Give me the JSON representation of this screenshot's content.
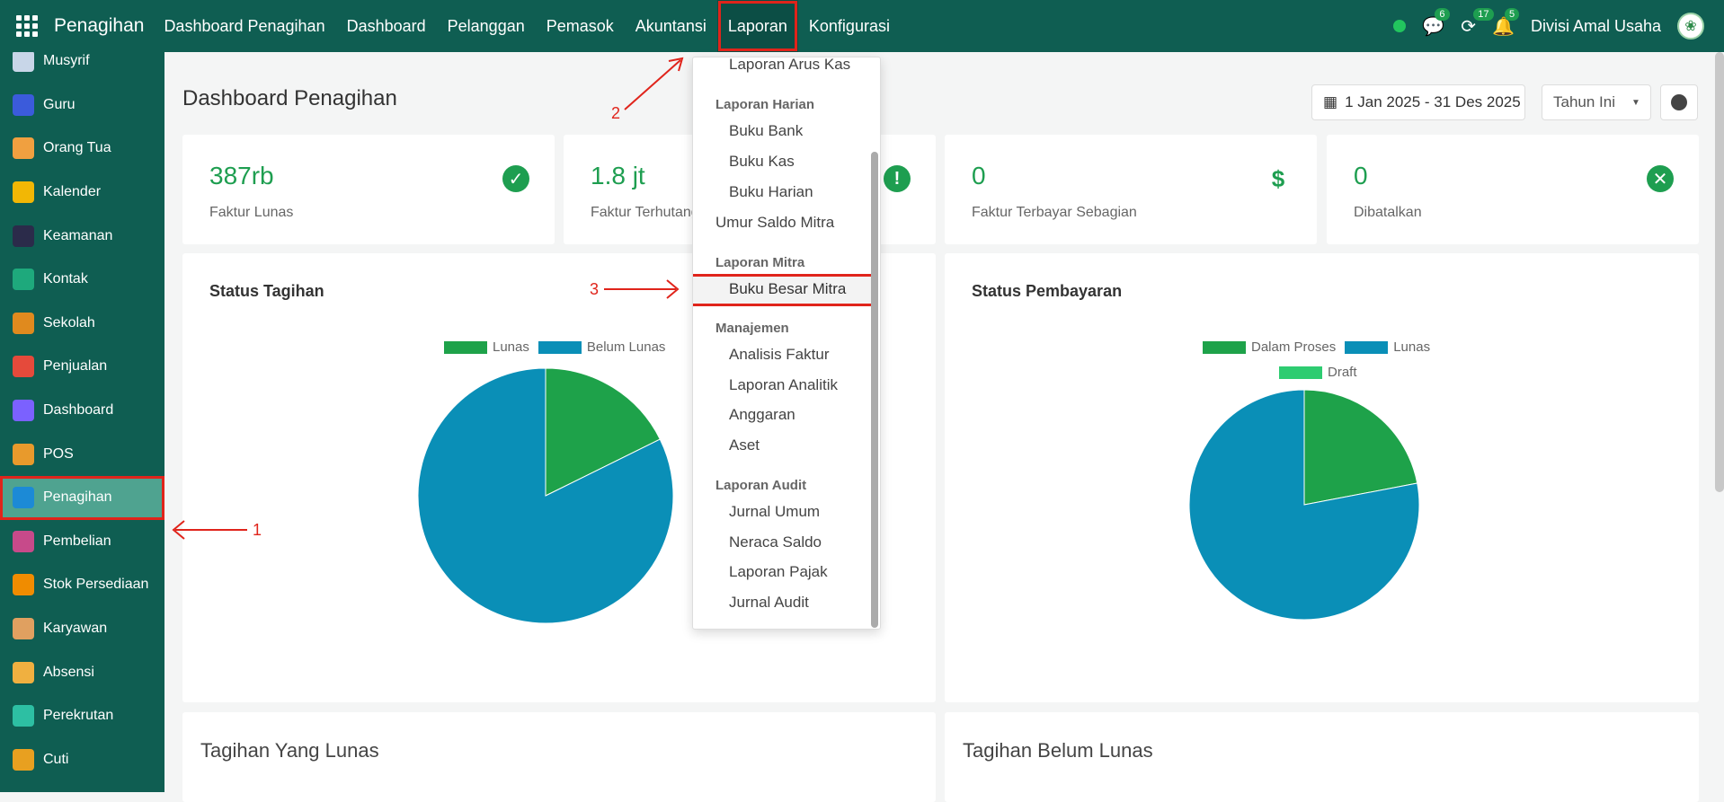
{
  "topbar": {
    "brand": "Penagihan",
    "menu": [
      "Dashboard Penagihan",
      "Dashboard",
      "Pelanggan",
      "Pemasok",
      "Akuntansi",
      "Laporan",
      "Konfigurasi"
    ],
    "badges": {
      "chat": "6",
      "activity": "17",
      "notif": "5"
    },
    "company": "Divisi Amal Usaha"
  },
  "sidebar": {
    "items": [
      {
        "label": "Musyrif",
        "icon": "person-icon",
        "color": "#c8d6e8"
      },
      {
        "label": "Guru",
        "icon": "teacher-icon",
        "color": "#3b5bdb"
      },
      {
        "label": "Orang Tua",
        "icon": "family-icon",
        "color": "#f0a040"
      },
      {
        "label": "Kalender",
        "icon": "calendar-icon",
        "color": "#f2b705"
      },
      {
        "label": "Keamanan",
        "icon": "guard-icon",
        "color": "#2b2b4a"
      },
      {
        "label": "Kontak",
        "icon": "contact-icon",
        "color": "#1ea97c"
      },
      {
        "label": "Sekolah",
        "icon": "school-icon",
        "color": "#e08a1e"
      },
      {
        "label": "Penjualan",
        "icon": "chart-icon",
        "color": "#e54a3b"
      },
      {
        "label": "Dashboard",
        "icon": "dashboard-icon",
        "color": "#7b61ff"
      },
      {
        "label": "POS",
        "icon": "shop-icon",
        "color": "#e89a2c"
      },
      {
        "label": "Penagihan",
        "icon": "invoice-icon",
        "color": "#1c8ad6"
      },
      {
        "label": "Pembelian",
        "icon": "card-icon",
        "color": "#c74a8a"
      },
      {
        "label": "Stok Persediaan",
        "icon": "box-icon",
        "color": "#f08c00"
      },
      {
        "label": "Karyawan",
        "icon": "people-icon",
        "color": "#e0a060"
      },
      {
        "label": "Absensi",
        "icon": "attendance-icon",
        "color": "#f0b040"
      },
      {
        "label": "Perekrutan",
        "icon": "search-icon",
        "color": "#2dbfa3"
      },
      {
        "label": "Cuti",
        "icon": "leave-icon",
        "color": "#e8a020"
      }
    ]
  },
  "page": {
    "title": "Dashboard Penagihan",
    "date_range": "1 Jan 2025 - 31 Des 2025",
    "period": "Tahun Ini"
  },
  "kpis": [
    {
      "value": "387rb",
      "label": "Faktur Lunas"
    },
    {
      "value": "1.8 jt",
      "label": "Faktur Terhutang"
    },
    {
      "value": "0",
      "label": "Faktur Terbayar Sebagian"
    },
    {
      "value": "0",
      "label": "Dibatalkan"
    }
  ],
  "cards": {
    "status_tagihan": "Status Tagihan",
    "status_pembayaran": "Status Pembayaran",
    "paid": "Tagihan Yang Lunas",
    "unpaid": "Tagihan Belum Lunas"
  },
  "dropdown": {
    "top_item": "Laporan Arus Kas",
    "h1": "Laporan Harian",
    "g1": [
      "Buku Bank",
      "Buku Kas",
      "Buku Harian"
    ],
    "root1": "Umur Saldo Mitra",
    "h2": "Laporan Mitra",
    "g2": [
      "Buku Besar Mitra"
    ],
    "h3": "Manajemen",
    "g3": [
      "Analisis Faktur",
      "Laporan Analitik",
      "Anggaran",
      "Aset"
    ],
    "h4": "Laporan Audit",
    "g4": [
      "Jurnal Umum",
      "Neraca Saldo",
      "Laporan Pajak",
      "Jurnal Audit"
    ]
  },
  "annotations": {
    "a1": "1",
    "a2": "2",
    "a3": "3"
  },
  "chart_data": [
    {
      "type": "pie",
      "title": "Status Tagihan",
      "labels": [
        "Lunas",
        "Belum Lunas"
      ],
      "values": [
        387,
        1800
      ],
      "colors": [
        "#1ea24a",
        "#0a8fb7"
      ]
    },
    {
      "type": "pie",
      "title": "Status Pembayaran",
      "labels": [
        "Dalam Proses",
        "Lunas",
        "Draft"
      ],
      "values": [
        22,
        78,
        0
      ],
      "colors": [
        "#1ea24a",
        "#0a8fb7",
        "#2ecc71"
      ]
    }
  ]
}
